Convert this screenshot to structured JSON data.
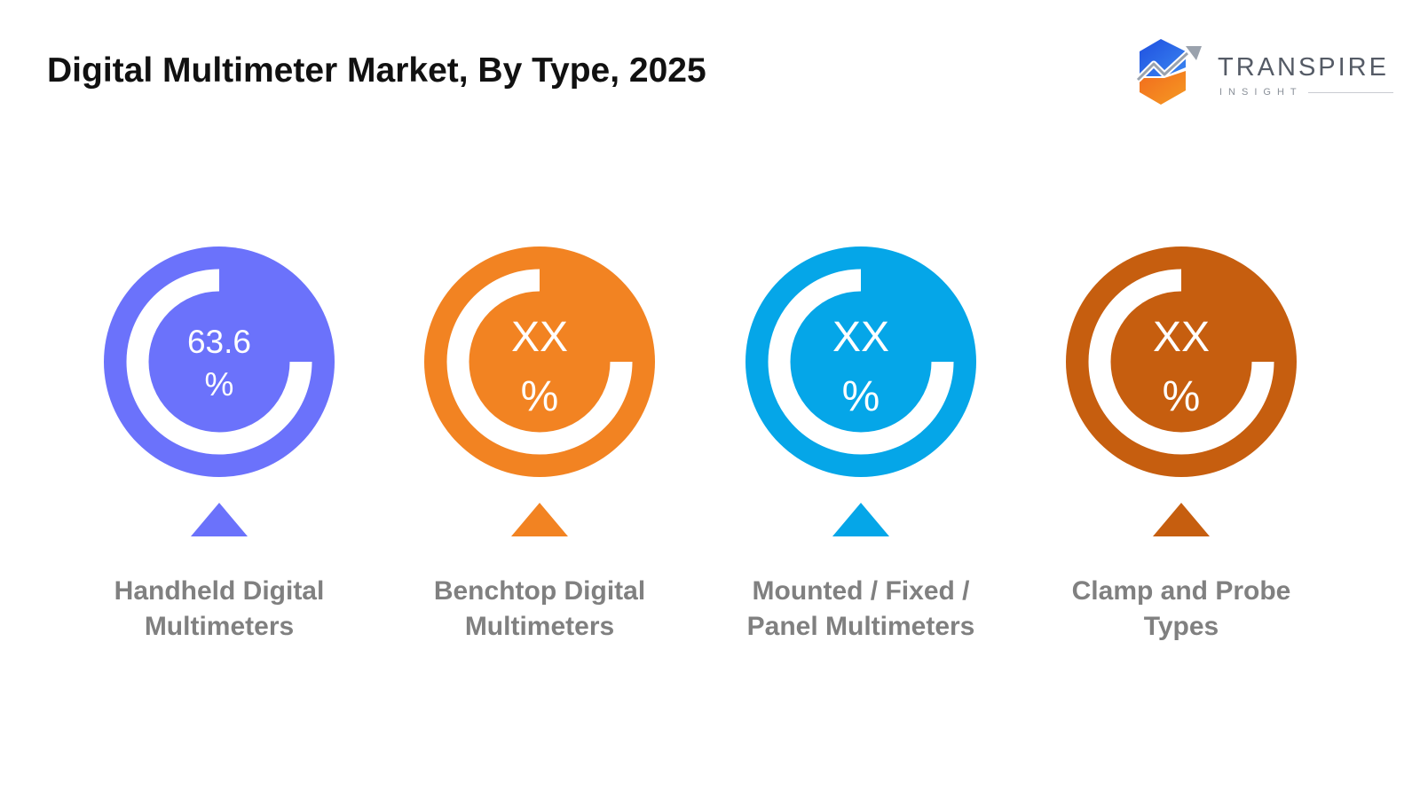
{
  "title": "Digital Multimeter Market, By Type, 2025",
  "brand": {
    "name": "TRANSPIRE",
    "subtitle": "INSIGHT",
    "logo_colors": [
      "#1f4fe0",
      "#3a86f0",
      "#f26b1d",
      "#f59a23"
    ]
  },
  "chart_data": {
    "type": "pie",
    "title": "Digital Multimeter Market, By Type, 2025",
    "unit": "%",
    "categories": [
      "Handheld Digital Multimeters",
      "Benchtop Digital Multimeters",
      "Mounted / Fixed / Panel Multimeters",
      "Clamp and Probe Types"
    ],
    "series": [
      {
        "values": [
          63.6,
          null,
          null,
          null
        ]
      }
    ],
    "items": [
      {
        "value_text": "63.6",
        "unit_text": "%",
        "label_lines": [
          "Handheld Digital",
          "Multimeters"
        ],
        "color": "#6b72fb",
        "ring_fraction": 0.75
      },
      {
        "value_text": "XX",
        "unit_text": "%",
        "label_lines": [
          "Benchtop Digital",
          "Multimeters"
        ],
        "color": "#f28322",
        "ring_fraction": 0.75
      },
      {
        "value_text": "XX",
        "unit_text": "%",
        "label_lines": [
          "Mounted / Fixed /",
          "Panel Multimeters"
        ],
        "color": "#05a6e8",
        "ring_fraction": 0.75
      },
      {
        "value_text": "XX",
        "unit_text": "%",
        "label_lines": [
          "Clamp and Probe",
          "Types"
        ],
        "color": "#c65e0f",
        "ring_fraction": 0.75
      }
    ],
    "label_color": "#808080",
    "value_text_color": "#ffffff",
    "ring_color": "#ffffff"
  }
}
